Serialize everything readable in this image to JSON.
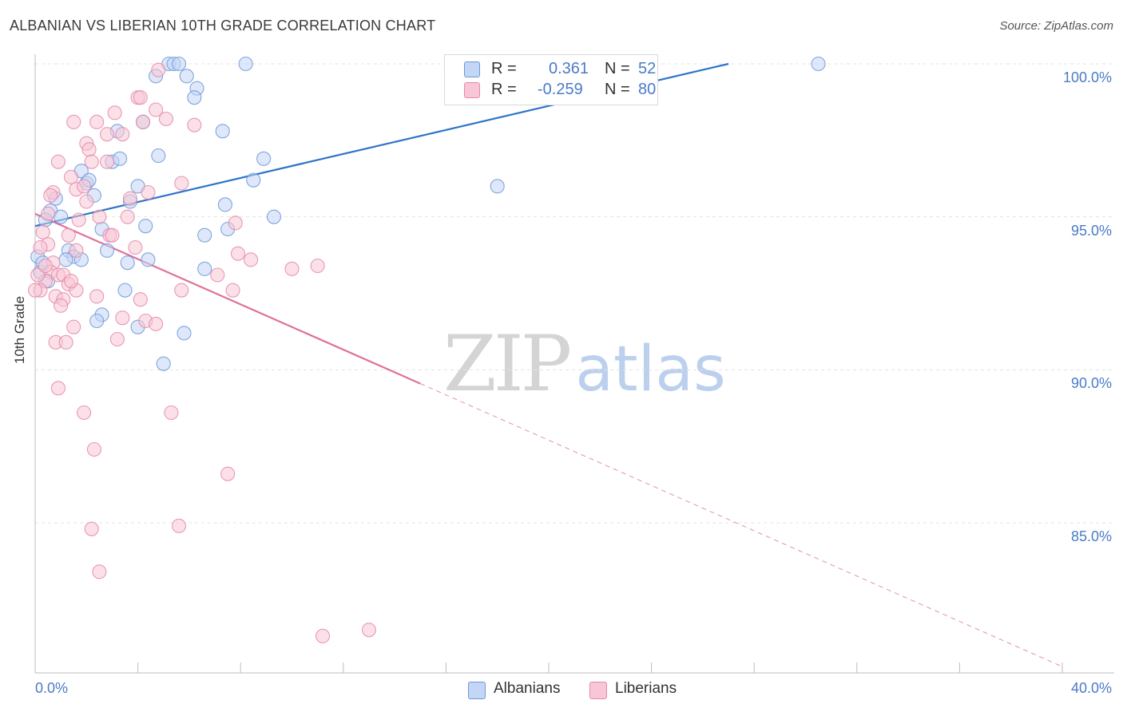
{
  "title": "ALBANIAN VS LIBERIAN 10TH GRADE CORRELATION CHART",
  "source": "Source: ZipAtlas.com",
  "watermark": {
    "zip": "ZIP",
    "atlas": "atlas"
  },
  "legend": {
    "r_label": "R =",
    "n_label": "N =",
    "rows": [
      {
        "r": "0.361",
        "n": "52",
        "fill": "#c3d6f5",
        "stroke": "#6d98d8"
      },
      {
        "r": "-0.259",
        "n": "80",
        "fill": "#f8c6d6",
        "stroke": "#e58aa8"
      }
    ]
  },
  "bottom_legend": [
    {
      "label": "Albanians",
      "fill": "#c3d6f5",
      "stroke": "#6d98d8"
    },
    {
      "label": "Liberians",
      "fill": "#f8c6d6",
      "stroke": "#e58aa8"
    }
  ],
  "chart_data": {
    "type": "scatter",
    "title": "ALBANIAN VS LIBERIAN 10TH GRADE CORRELATION CHART",
    "xlabel": "",
    "ylabel": "10th Grade",
    "xlim": [
      0,
      40
    ],
    "ylim": [
      80.5,
      101.0
    ],
    "x_tick_labels": [
      "0.0%",
      "40.0%"
    ],
    "y_ticks": [
      85,
      90,
      95,
      100
    ],
    "y_tick_labels": [
      "85.0%",
      "90.0%",
      "95.0%",
      "100.0%"
    ],
    "grid": true,
    "legend_position": "top-center",
    "series": [
      {
        "name": "Albanians",
        "color": "#6d98d8",
        "fill": "#c3d6f5",
        "line_color": "#2f73c9",
        "trend": {
          "x0": 0.0,
          "y0": 94.7,
          "x1": 27.0,
          "y1": 100.0,
          "dashed_to": null
        },
        "points": [
          [
            5.2,
            100.0
          ],
          [
            5.4,
            100.0
          ],
          [
            5.6,
            100.0
          ],
          [
            8.2,
            100.0
          ],
          [
            30.5,
            100.0
          ],
          [
            4.7,
            99.6
          ],
          [
            5.9,
            99.6
          ],
          [
            6.3,
            99.2
          ],
          [
            6.2,
            98.9
          ],
          [
            4.2,
            98.1
          ],
          [
            3.2,
            97.8
          ],
          [
            7.3,
            97.8
          ],
          [
            3.0,
            96.8
          ],
          [
            3.3,
            96.9
          ],
          [
            4.8,
            97.0
          ],
          [
            8.9,
            96.9
          ],
          [
            1.8,
            96.5
          ],
          [
            2.0,
            96.1
          ],
          [
            2.1,
            96.2
          ],
          [
            4.0,
            96.0
          ],
          [
            8.5,
            96.2
          ],
          [
            18.0,
            96.0
          ],
          [
            2.3,
            95.7
          ],
          [
            0.8,
            95.6
          ],
          [
            3.7,
            95.5
          ],
          [
            7.4,
            95.4
          ],
          [
            0.6,
            95.2
          ],
          [
            1.0,
            95.0
          ],
          [
            9.3,
            95.0
          ],
          [
            0.4,
            94.9
          ],
          [
            4.3,
            94.7
          ],
          [
            2.6,
            94.6
          ],
          [
            7.5,
            94.6
          ],
          [
            6.6,
            94.4
          ],
          [
            1.3,
            93.9
          ],
          [
            1.5,
            93.7
          ],
          [
            2.8,
            93.9
          ],
          [
            1.2,
            93.6
          ],
          [
            1.8,
            93.6
          ],
          [
            3.6,
            93.5
          ],
          [
            4.4,
            93.6
          ],
          [
            0.2,
            93.2
          ],
          [
            6.6,
            93.3
          ],
          [
            0.5,
            92.9
          ],
          [
            3.5,
            92.6
          ],
          [
            2.6,
            91.8
          ],
          [
            2.4,
            91.6
          ],
          [
            4.0,
            91.4
          ],
          [
            5.8,
            91.2
          ],
          [
            5.0,
            90.2
          ],
          [
            0.1,
            93.7
          ],
          [
            0.3,
            93.5
          ]
        ]
      },
      {
        "name": "Liberians",
        "color": "#e58aa8",
        "fill": "#f8c6d6",
        "line_color": "#e0709a",
        "trend": {
          "x0": 0.0,
          "y0": 95.1,
          "x1": 15.0,
          "y1": 89.55,
          "dashed_to": [
            40.0,
            80.3
          ]
        },
        "points": [
          [
            4.8,
            99.8
          ],
          [
            4.0,
            98.9
          ],
          [
            3.1,
            98.4
          ],
          [
            4.7,
            98.5
          ],
          [
            5.1,
            98.2
          ],
          [
            1.5,
            98.1
          ],
          [
            2.4,
            98.1
          ],
          [
            4.2,
            98.1
          ],
          [
            6.2,
            98.0
          ],
          [
            2.8,
            97.7
          ],
          [
            3.4,
            97.7
          ],
          [
            2.0,
            97.4
          ],
          [
            2.1,
            97.2
          ],
          [
            0.9,
            96.8
          ],
          [
            2.2,
            96.8
          ],
          [
            2.8,
            96.8
          ],
          [
            1.4,
            96.3
          ],
          [
            5.7,
            96.1
          ],
          [
            1.6,
            95.9
          ],
          [
            0.7,
            95.8
          ],
          [
            3.7,
            95.6
          ],
          [
            4.4,
            95.8
          ],
          [
            2.0,
            95.5
          ],
          [
            0.5,
            95.1
          ],
          [
            3.6,
            95.0
          ],
          [
            1.7,
            94.9
          ],
          [
            7.8,
            94.8
          ],
          [
            0.3,
            94.5
          ],
          [
            1.3,
            94.4
          ],
          [
            2.9,
            94.4
          ],
          [
            0.5,
            94.1
          ],
          [
            1.6,
            93.9
          ],
          [
            3.9,
            94.0
          ],
          [
            7.9,
            93.8
          ],
          [
            8.4,
            93.6
          ],
          [
            0.7,
            93.5
          ],
          [
            10.0,
            93.3
          ],
          [
            11.0,
            93.4
          ],
          [
            0.6,
            93.2
          ],
          [
            0.9,
            93.1
          ],
          [
            1.1,
            93.1
          ],
          [
            7.1,
            93.1
          ],
          [
            0.4,
            92.9
          ],
          [
            1.3,
            92.8
          ],
          [
            1.6,
            92.6
          ],
          [
            5.7,
            92.6
          ],
          [
            7.7,
            92.6
          ],
          [
            0.8,
            92.4
          ],
          [
            2.4,
            92.4
          ],
          [
            1.1,
            92.3
          ],
          [
            4.1,
            92.3
          ],
          [
            3.4,
            91.7
          ],
          [
            4.3,
            91.6
          ],
          [
            4.7,
            91.5
          ],
          [
            1.5,
            91.4
          ],
          [
            3.2,
            91.0
          ],
          [
            0.8,
            90.9
          ],
          [
            1.2,
            90.9
          ],
          [
            0.9,
            89.4
          ],
          [
            1.9,
            88.6
          ],
          [
            5.3,
            88.6
          ],
          [
            2.3,
            87.4
          ],
          [
            7.5,
            86.6
          ],
          [
            2.2,
            84.8
          ],
          [
            5.6,
            84.9
          ],
          [
            2.5,
            83.4
          ],
          [
            11.2,
            81.3
          ],
          [
            13.0,
            81.5
          ],
          [
            0.2,
            94.0
          ],
          [
            0.1,
            93.1
          ],
          [
            0.4,
            93.4
          ],
          [
            0.2,
            92.6
          ],
          [
            0.6,
            95.7
          ],
          [
            1.9,
            96.0
          ],
          [
            2.5,
            95.0
          ],
          [
            3.0,
            94.4
          ],
          [
            0.0,
            92.6
          ],
          [
            1.0,
            92.1
          ],
          [
            1.4,
            92.9
          ],
          [
            4.1,
            98.9
          ]
        ]
      }
    ]
  }
}
